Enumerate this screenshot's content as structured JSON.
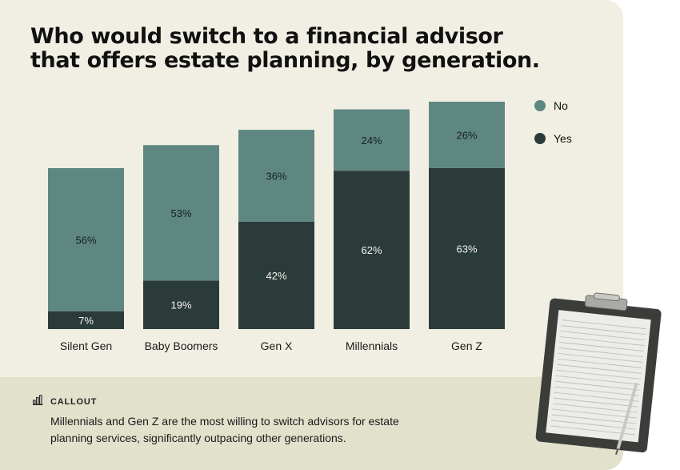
{
  "title": "Who would switch to a financial advisor that offers estate planning, by generation.",
  "colors": {
    "yes": "#2a3b39",
    "no": "#5f8782",
    "background": "#f1efe3",
    "footer": "#e2e1cc"
  },
  "legend": [
    {
      "label": "No",
      "color": "#5f8782"
    },
    {
      "label": "Yes",
      "color": "#2a3b39"
    }
  ],
  "chart_data": {
    "type": "bar",
    "stacked": true,
    "title": "Who would switch to a financial advisor that offers estate planning, by generation.",
    "categories": [
      "Silent Gen",
      "Baby Boomers",
      "Gen X",
      "Millennials",
      "Gen Z"
    ],
    "series": [
      {
        "name": "Yes",
        "values": [
          7,
          19,
          42,
          62,
          63
        ],
        "labels": [
          "7%",
          "19%",
          "42%",
          "62%",
          "63%"
        ]
      },
      {
        "name": "No",
        "values": [
          56,
          53,
          36,
          24,
          26
        ],
        "labels": [
          "56%",
          "53%",
          "36%",
          "24%",
          "26%"
        ]
      }
    ],
    "ylim": [
      0,
      89
    ],
    "grid": false,
    "legend_position": "top-right"
  },
  "callout": {
    "icon": "bar-chart-icon",
    "label": "CALLOUT",
    "text": "Millennials and Gen Z are the most willing to switch advisors for estate planning services, significantly outpacing other generations."
  }
}
